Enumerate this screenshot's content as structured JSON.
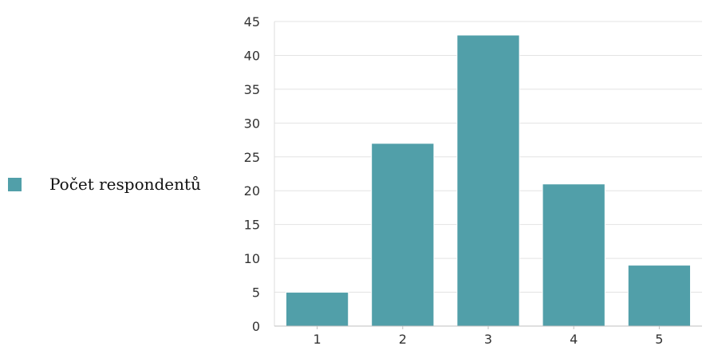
{
  "chart_data": {
    "type": "bar",
    "categories": [
      "1",
      "2",
      "3",
      "4",
      "5"
    ],
    "series": [
      {
        "name": "Počet respondentů",
        "values": [
          5,
          27,
          43,
          21,
          9
        ]
      }
    ],
    "ylim": [
      0,
      45
    ],
    "yticks": [
      0,
      5,
      10,
      15,
      20,
      25,
      30,
      35,
      40,
      45
    ],
    "grid": true,
    "legend_position": "left",
    "bar_color": "#519fa9",
    "grid_color": "#e3e3e3"
  },
  "legend": {
    "label": "Počet respondentů"
  }
}
